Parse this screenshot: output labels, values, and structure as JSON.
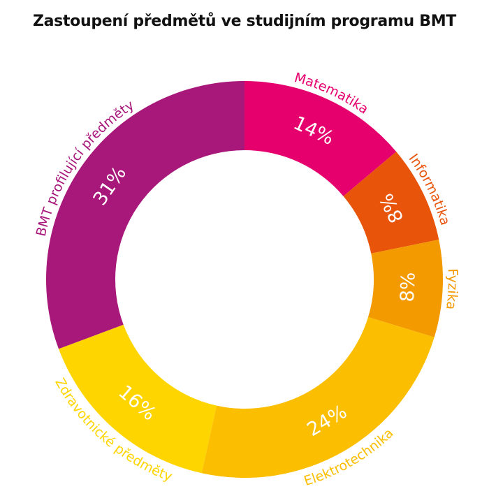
{
  "chart_data": {
    "type": "pie",
    "variant": "donut",
    "title": "Zastoupení předmětů ve studijním programu BMT",
    "slices": [
      {
        "label": "Matematika",
        "value": 14,
        "value_label": "14%",
        "color": "#E5006D"
      },
      {
        "label": "Informatika",
        "value": 8,
        "value_label": "8%",
        "color": "#E85409"
      },
      {
        "label": "Fyzika",
        "value": 8,
        "value_label": "8%",
        "color": "#F39A00"
      },
      {
        "label": "Elektrotechnika",
        "value": 24,
        "value_label": "24%",
        "color": "#FBBE00"
      },
      {
        "label": "Zdravotnické předměty",
        "value": 16,
        "value_label": "16%",
        "color": "#FFD500"
      },
      {
        "label": "BMT profilující předměty",
        "value": 31,
        "value_label": "31%",
        "color": "#A8177A"
      }
    ]
  }
}
